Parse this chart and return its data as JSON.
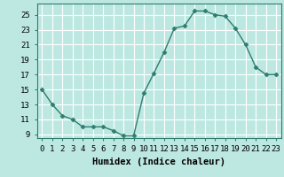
{
  "x": [
    0,
    1,
    2,
    3,
    4,
    5,
    6,
    7,
    8,
    9,
    10,
    11,
    12,
    13,
    14,
    15,
    16,
    17,
    18,
    19,
    20,
    21,
    22,
    23
  ],
  "y": [
    15,
    13,
    11.5,
    11,
    10,
    10,
    10,
    9.5,
    8.8,
    8.8,
    14.5,
    17.2,
    20,
    23.2,
    23.5,
    25.5,
    25.5,
    25,
    24.8,
    23.2,
    21,
    18,
    17,
    17
  ],
  "line_color": "#2e7d6e",
  "marker": "D",
  "marker_size": 2.5,
  "bg_color": "#bde8e2",
  "grid_color": "#ffffff",
  "xlabel": "Humidex (Indice chaleur)",
  "ylim": [
    8.5,
    26.5
  ],
  "yticks": [
    9,
    11,
    13,
    15,
    17,
    19,
    21,
    23,
    25
  ],
  "xticks": [
    0,
    1,
    2,
    3,
    4,
    5,
    6,
    7,
    8,
    9,
    10,
    11,
    12,
    13,
    14,
    15,
    16,
    17,
    18,
    19,
    20,
    21,
    22,
    23
  ],
  "xlim": [
    -0.5,
    23.5
  ],
  "xlabel_fontsize": 7.5,
  "tick_fontsize": 6.5,
  "line_width": 1.0
}
